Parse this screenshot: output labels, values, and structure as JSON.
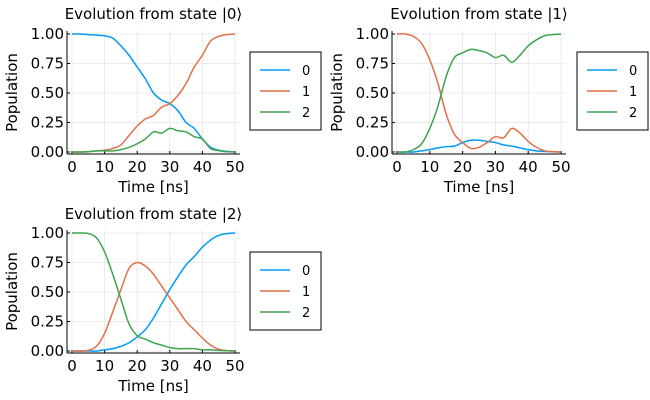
{
  "chart_data": [
    {
      "type": "line",
      "title": "Evolution from state |0⟩",
      "xlabel": "Time [ns]",
      "ylabel": "Population",
      "xlim": [
        0,
        50
      ],
      "ylim": [
        0,
        1
      ],
      "xticks": [
        "0",
        "10",
        "20",
        "30",
        "40",
        "50"
      ],
      "yticks": [
        "0.00",
        "0.25",
        "0.50",
        "0.75",
        "1.00"
      ],
      "grid": true,
      "legend": "outside-right",
      "x": [
        0,
        2.5,
        5,
        7.5,
        10,
        12.5,
        15,
        17.5,
        20,
        22.5,
        25,
        27.5,
        30,
        32.5,
        35,
        37.5,
        40,
        42.5,
        45,
        47.5,
        50
      ],
      "series": [
        {
          "name": "0",
          "color": "#009AFA",
          "values": [
            1.0,
            1.0,
            0.995,
            0.99,
            0.985,
            0.965,
            0.9,
            0.82,
            0.72,
            0.62,
            0.5,
            0.44,
            0.41,
            0.35,
            0.25,
            0.2,
            0.11,
            0.04,
            0.015,
            0.005,
            0.0
          ]
        },
        {
          "name": "1",
          "color": "#E36F47",
          "values": [
            0.0,
            0.0,
            0.003,
            0.01,
            0.015,
            0.03,
            0.06,
            0.14,
            0.22,
            0.28,
            0.31,
            0.38,
            0.41,
            0.48,
            0.58,
            0.72,
            0.82,
            0.94,
            0.98,
            0.995,
            1.0
          ]
        },
        {
          "name": "2",
          "color": "#3EA44E",
          "values": [
            0.0,
            0.0,
            0.002,
            0.01,
            0.01,
            0.01,
            0.02,
            0.04,
            0.07,
            0.11,
            0.17,
            0.16,
            0.2,
            0.18,
            0.17,
            0.13,
            0.11,
            0.03,
            0.012,
            0.003,
            0.0
          ]
        }
      ]
    },
    {
      "type": "line",
      "title": "Evolution from state |1⟩",
      "xlabel": "Time [ns]",
      "ylabel": "Population",
      "xlim": [
        0,
        50
      ],
      "ylim": [
        0,
        1
      ],
      "xticks": [
        "0",
        "10",
        "20",
        "30",
        "40",
        "50"
      ],
      "yticks": [
        "0.00",
        "0.25",
        "0.50",
        "0.75",
        "1.00"
      ],
      "grid": true,
      "legend": "outside-right",
      "x": [
        0,
        2.5,
        5,
        7.5,
        10,
        12.5,
        15,
        17.5,
        20,
        22.5,
        25,
        27.5,
        30,
        32.5,
        35,
        37.5,
        40,
        42.5,
        45,
        47.5,
        50
      ],
      "series": [
        {
          "name": "0",
          "color": "#009AFA",
          "values": [
            0.0,
            0.0,
            0.0,
            0.01,
            0.02,
            0.035,
            0.045,
            0.05,
            0.08,
            0.1,
            0.1,
            0.09,
            0.08,
            0.06,
            0.05,
            0.035,
            0.02,
            0.01,
            0.005,
            0.002,
            0.0
          ]
        },
        {
          "name": "1",
          "color": "#E36F47",
          "values": [
            1.0,
            1.0,
            0.98,
            0.92,
            0.78,
            0.58,
            0.32,
            0.15,
            0.08,
            0.03,
            0.04,
            0.08,
            0.13,
            0.12,
            0.2,
            0.16,
            0.09,
            0.04,
            0.01,
            0.003,
            0.0
          ]
        },
        {
          "name": "2",
          "color": "#3EA44E",
          "values": [
            0.0,
            0.0,
            0.02,
            0.07,
            0.2,
            0.39,
            0.64,
            0.8,
            0.84,
            0.87,
            0.86,
            0.84,
            0.8,
            0.82,
            0.76,
            0.82,
            0.9,
            0.95,
            0.985,
            0.995,
            1.0
          ]
        }
      ]
    },
    {
      "type": "line",
      "title": "Evolution from state |2⟩",
      "xlabel": "Time [ns]",
      "ylabel": "Population",
      "xlim": [
        0,
        50
      ],
      "ylim": [
        0,
        1
      ],
      "xticks": [
        "0",
        "10",
        "20",
        "30",
        "40",
        "50"
      ],
      "yticks": [
        "0.00",
        "0.25",
        "0.50",
        "0.75",
        "1.00"
      ],
      "grid": true,
      "legend": "outside-right",
      "x": [
        0,
        2.5,
        5,
        7.5,
        10,
        12.5,
        15,
        17.5,
        20,
        22.5,
        25,
        27.5,
        30,
        32.5,
        35,
        37.5,
        40,
        42.5,
        45,
        47.5,
        50
      ],
      "series": [
        {
          "name": "0",
          "color": "#009AFA",
          "values": [
            0.0,
            0.0,
            0.0,
            0.0,
            0.01,
            0.02,
            0.04,
            0.07,
            0.12,
            0.18,
            0.28,
            0.4,
            0.52,
            0.63,
            0.73,
            0.8,
            0.88,
            0.94,
            0.98,
            0.995,
            1.0
          ]
        },
        {
          "name": "1",
          "color": "#E36F47",
          "values": [
            0.0,
            0.0,
            0.005,
            0.04,
            0.15,
            0.33,
            0.52,
            0.7,
            0.75,
            0.72,
            0.65,
            0.55,
            0.45,
            0.35,
            0.25,
            0.18,
            0.11,
            0.05,
            0.015,
            0.003,
            0.0
          ]
        },
        {
          "name": "2",
          "color": "#3EA44E",
          "values": [
            1.0,
            1.0,
            0.995,
            0.96,
            0.84,
            0.65,
            0.44,
            0.23,
            0.13,
            0.1,
            0.07,
            0.05,
            0.03,
            0.02,
            0.02,
            0.02,
            0.01,
            0.01,
            0.005,
            0.002,
            0.0
          ]
        }
      ]
    }
  ]
}
